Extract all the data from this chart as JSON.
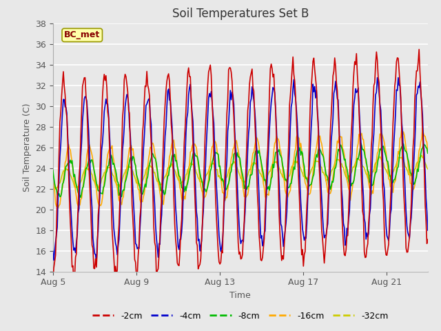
{
  "title": "Soil Temperatures Set B",
  "xlabel": "Time",
  "ylabel": "Soil Temperature (C)",
  "ylim": [
    14,
    38
  ],
  "yticks": [
    14,
    16,
    18,
    20,
    22,
    24,
    26,
    28,
    30,
    32,
    34,
    36,
    38
  ],
  "xtick_labels": [
    "Aug 5",
    "Aug 9",
    "Aug 13",
    "Aug 17",
    "Aug 21"
  ],
  "xtick_positions": [
    0,
    96,
    192,
    288,
    384
  ],
  "legend_labels": [
    "-2cm",
    "-4cm",
    "-8cm",
    "-16cm",
    "-32cm"
  ],
  "line_colors": [
    "#cc0000",
    "#0000cc",
    "#00bb00",
    "#ffaa00",
    "#cccc00"
  ],
  "bg_color": "#e8e8e8",
  "fig_bg_color": "#e8e8e8",
  "annotation_text": "BC_met",
  "annotation_bg": "#ffffaa",
  "annotation_border": "#999900",
  "annotation_text_color": "#880000",
  "n_points": 432,
  "period_hours": 24,
  "mean_temp": 23.0,
  "amp_2cm": 9.5,
  "amp_4cm": 7.5,
  "amp_8cm": 1.8,
  "amp_16cm": 2.8,
  "amp_32cm": 0.9,
  "phase_2cm": 0.0,
  "phase_4cm": 1.2,
  "phase_8cm": 7.0,
  "phase_16cm": 6.0,
  "phase_32cm": 3.5,
  "noise_2cm": 0.5,
  "noise_4cm": 0.4,
  "noise_8cm": 0.2,
  "noise_16cm": 0.2,
  "noise_32cm": 0.1,
  "trend_start": 0.0,
  "trend_end_2cm": 2.5,
  "trend_end_4cm": 2.0,
  "trend_end_8cm": 1.5,
  "trend_end_16cm": 1.8,
  "trend_end_32cm": 1.2
}
